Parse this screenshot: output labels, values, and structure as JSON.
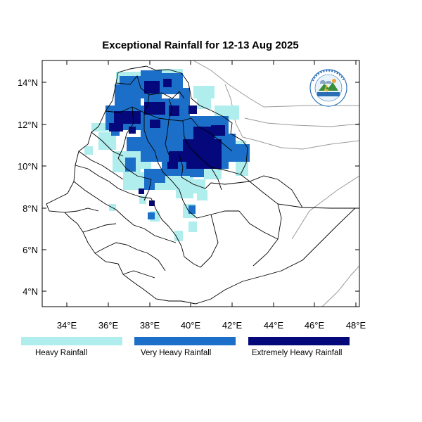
{
  "title": "Exceptional Rainfall for 12-13 Aug 2025",
  "axes": {
    "lon_ticks": [
      "34°E",
      "36°E",
      "38°E",
      "40°E",
      "42°E",
      "44°E",
      "46°E",
      "48°E"
    ],
    "lat_ticks": [
      "14°N",
      "12°N",
      "10°N",
      "8°N",
      "6°N",
      "4°N"
    ],
    "lon_range": [
      32.8,
      48.2
    ],
    "lat_range": [
      3.3,
      15.0
    ]
  },
  "legend": [
    {
      "label": "Heavy Rainfall",
      "color": "#b0eded"
    },
    {
      "label": "Very Heavy Rainfall",
      "color": "#1c6fc9"
    },
    {
      "label": "Extremely Heavy Rainfall",
      "color": "#05087a"
    }
  ],
  "logo": {
    "icon": "ethiopian-meteorology-institute-logo"
  }
}
